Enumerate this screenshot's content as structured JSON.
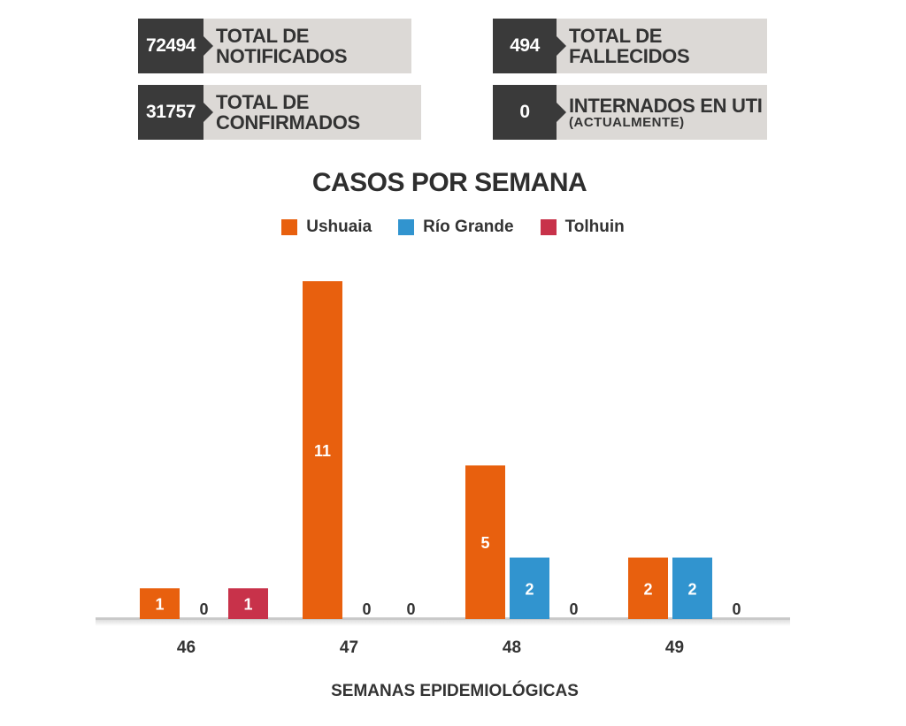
{
  "stats": [
    {
      "value": "72494",
      "label": "TOTAL DE NOTIFICADOS"
    },
    {
      "value": "31757",
      "label": "TOTAL DE CONFIRMADOS"
    },
    {
      "value": "494",
      "label": "TOTAL DE FALLECIDOS"
    },
    {
      "value": "0",
      "label": "INTERNADOS EN UTI",
      "sublabel": "(ACTUALMENTE)"
    }
  ],
  "chart_data": {
    "type": "bar",
    "title": "CASOS POR SEMANA",
    "xlabel": "SEMANAS EPIDEMIOLÓGICAS",
    "ylabel": "",
    "categories": [
      "46",
      "47",
      "48",
      "49"
    ],
    "series": [
      {
        "name": "Ushuaia",
        "color": "#e8600e",
        "values": [
          1,
          11,
          5,
          2
        ]
      },
      {
        "name": "Río Grande",
        "color": "#3194cf",
        "values": [
          0,
          0,
          2,
          2
        ]
      },
      {
        "name": "Tolhuin",
        "color": "#c8324a",
        "values": [
          1,
          0,
          0,
          0
        ]
      }
    ],
    "ylim": [
      0,
      11
    ],
    "grid": false,
    "legend": "top-center",
    "data_labels": true
  }
}
